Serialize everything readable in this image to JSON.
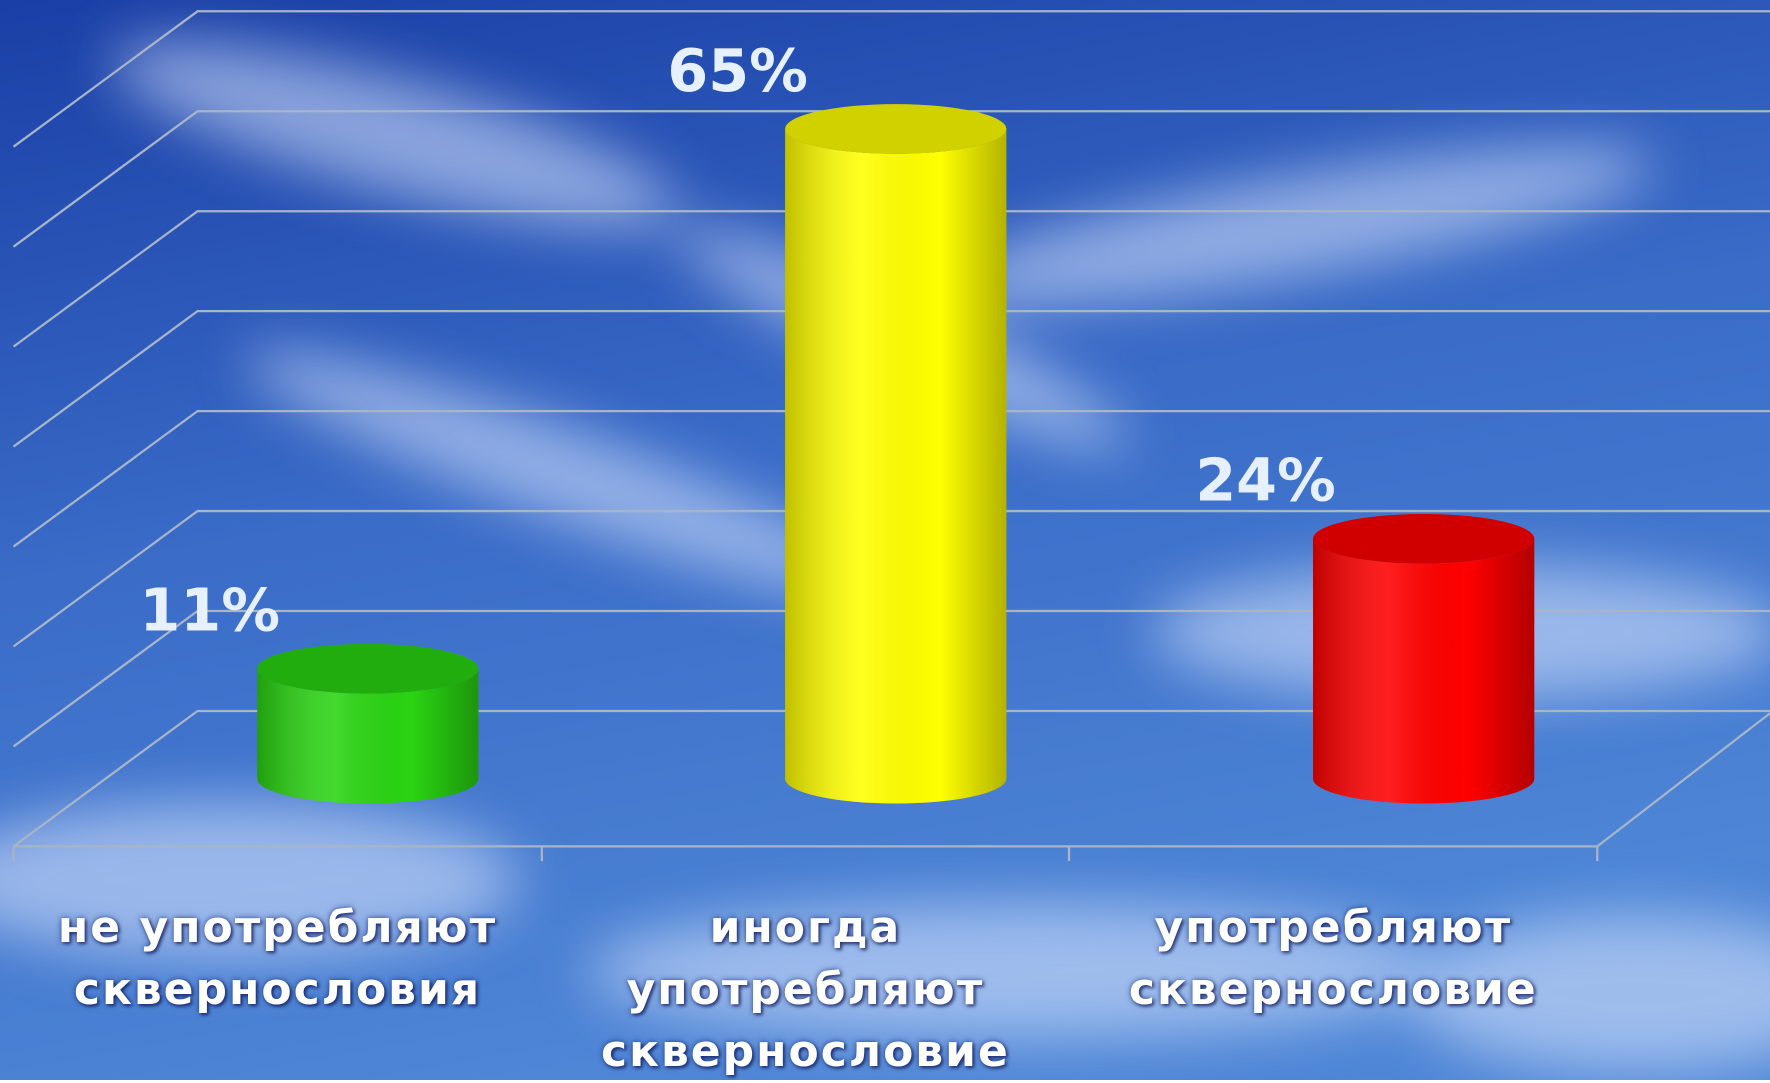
{
  "chart_data": {
    "type": "bar3d-cylinder",
    "categories": [
      "не употребляют сквернословия",
      "иногда употребляют сквернословие",
      "употребляют сквернословие"
    ],
    "values": [
      11,
      65,
      24
    ],
    "value_labels": [
      "11%",
      "65%",
      "24%"
    ],
    "colors": [
      "#2ad412",
      "#ffff00",
      "#ff0000"
    ],
    "ylim": [
      0,
      70
    ],
    "yticks": [
      0,
      10,
      20,
      30,
      40,
      50,
      60,
      70
    ],
    "grid": true
  }
}
